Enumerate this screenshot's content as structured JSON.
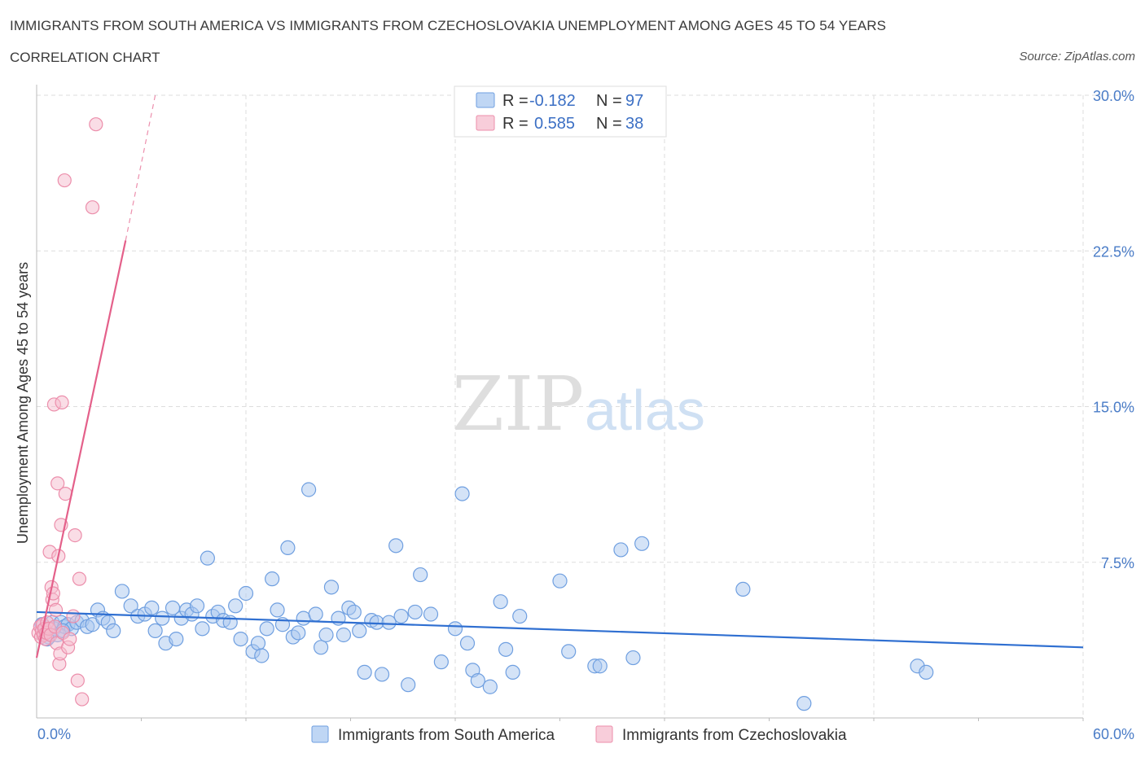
{
  "header": {
    "title": "IMMIGRANTS FROM SOUTH AMERICA VS IMMIGRANTS FROM CZECHOSLOVAKIA UNEMPLOYMENT AMONG AGES 45 TO 54 YEARS",
    "subtitle": "CORRELATION CHART",
    "source": "Source: ZipAtlas.com"
  },
  "watermark": {
    "zip": "ZIP",
    "atlas": "atlas"
  },
  "legend": {
    "r_label": "R =",
    "n_label": "N =",
    "rows": [
      {
        "r": "-0.182",
        "n": "97"
      },
      {
        "r": "0.585",
        "n": "38"
      }
    ]
  },
  "colors": {
    "blue_fill": "#a9c8f0",
    "blue_stroke": "#6f9fe0",
    "blue_line": "#2f6fd1",
    "pink_fill": "#f6bccd",
    "pink_stroke": "#ec8eab",
    "pink_line": "#e4608a",
    "grid": "#dddddd",
    "axis_text": "#4a7cc7"
  },
  "chart_data": {
    "type": "scatter",
    "title": "IMMIGRANTS FROM SOUTH AMERICA VS IMMIGRANTS FROM CZECHOSLOVAKIA UNEMPLOYMENT AMONG AGES 45 TO 54 YEARS",
    "xlabel": "",
    "ylabel": "Unemployment Among Ages 45 to 54 years",
    "xlim": [
      0,
      60
    ],
    "ylim": [
      0,
      30
    ],
    "x_tick_labels": [
      "0.0%",
      "60.0%"
    ],
    "y_ticks": [
      7.5,
      15.0,
      22.5,
      30.0
    ],
    "y_tick_labels": [
      "7.5%",
      "15.0%",
      "22.5%",
      "30.0%"
    ],
    "grid": true,
    "legend_position": "top-center",
    "series": [
      {
        "name": "Immigrants from South America",
        "r": -0.182,
        "n": 97,
        "trend": {
          "x0": 0,
          "y0": 5.1,
          "x1": 60,
          "y1": 3.4
        },
        "points": [
          [
            0.3,
            4.5
          ],
          [
            0.5,
            4.2
          ],
          [
            0.7,
            3.9
          ],
          [
            0.9,
            4.6
          ],
          [
            1.0,
            4.3
          ],
          [
            1.2,
            4.0
          ],
          [
            1.4,
            4.6
          ],
          [
            1.6,
            4.4
          ],
          [
            1.8,
            4.5
          ],
          [
            2.0,
            4.3
          ],
          [
            2.3,
            4.6
          ],
          [
            2.6,
            4.7
          ],
          [
            2.9,
            4.4
          ],
          [
            3.2,
            4.5
          ],
          [
            3.5,
            5.2
          ],
          [
            3.8,
            4.8
          ],
          [
            4.1,
            4.6
          ],
          [
            4.4,
            4.2
          ],
          [
            4.9,
            6.1
          ],
          [
            5.4,
            5.4
          ],
          [
            5.8,
            4.9
          ],
          [
            6.2,
            5.0
          ],
          [
            6.6,
            5.3
          ],
          [
            6.8,
            4.2
          ],
          [
            7.2,
            4.8
          ],
          [
            7.4,
            3.6
          ],
          [
            7.8,
            5.3
          ],
          [
            8.0,
            3.8
          ],
          [
            8.3,
            4.8
          ],
          [
            8.6,
            5.2
          ],
          [
            8.9,
            5.0
          ],
          [
            9.2,
            5.4
          ],
          [
            9.5,
            4.3
          ],
          [
            9.8,
            7.7
          ],
          [
            10.1,
            4.9
          ],
          [
            10.4,
            5.1
          ],
          [
            10.7,
            4.7
          ],
          [
            11.1,
            4.6
          ],
          [
            11.4,
            5.4
          ],
          [
            11.7,
            3.8
          ],
          [
            12.0,
            6.0
          ],
          [
            12.4,
            3.2
          ],
          [
            12.7,
            3.6
          ],
          [
            12.9,
            3.0
          ],
          [
            13.2,
            4.3
          ],
          [
            13.5,
            6.7
          ],
          [
            13.8,
            5.2
          ],
          [
            14.1,
            4.5
          ],
          [
            14.4,
            8.2
          ],
          [
            14.7,
            3.9
          ],
          [
            15.0,
            4.1
          ],
          [
            15.3,
            4.8
          ],
          [
            15.6,
            11.0
          ],
          [
            16.0,
            5.0
          ],
          [
            16.3,
            3.4
          ],
          [
            16.6,
            4.0
          ],
          [
            16.9,
            6.3
          ],
          [
            17.3,
            4.8
          ],
          [
            17.6,
            4.0
          ],
          [
            17.9,
            5.3
          ],
          [
            18.2,
            5.1
          ],
          [
            18.5,
            4.2
          ],
          [
            18.8,
            2.2
          ],
          [
            19.2,
            4.7
          ],
          [
            19.5,
            4.6
          ],
          [
            19.8,
            2.1
          ],
          [
            20.2,
            4.6
          ],
          [
            20.6,
            8.3
          ],
          [
            20.9,
            4.9
          ],
          [
            21.3,
            1.6
          ],
          [
            21.7,
            5.1
          ],
          [
            22.0,
            6.9
          ],
          [
            22.6,
            5.0
          ],
          [
            23.2,
            2.7
          ],
          [
            24.0,
            4.3
          ],
          [
            24.4,
            10.8
          ],
          [
            24.7,
            3.6
          ],
          [
            25.0,
            2.3
          ],
          [
            25.3,
            1.8
          ],
          [
            26.0,
            1.5
          ],
          [
            26.6,
            5.6
          ],
          [
            26.9,
            3.3
          ],
          [
            27.3,
            2.2
          ],
          [
            27.7,
            4.9
          ],
          [
            30.0,
            6.6
          ],
          [
            30.5,
            3.2
          ],
          [
            32.0,
            2.5
          ],
          [
            32.3,
            2.5
          ],
          [
            33.5,
            8.1
          ],
          [
            34.2,
            2.9
          ],
          [
            34.7,
            8.4
          ],
          [
            40.5,
            6.2
          ],
          [
            44.0,
            0.7
          ],
          [
            50.5,
            2.5
          ],
          [
            51.0,
            2.2
          ],
          [
            0.6,
            3.8
          ],
          [
            1.5,
            4.2
          ]
        ]
      },
      {
        "name": "Immigrants from Czechoslovakia",
        "r": 0.585,
        "n": 38,
        "trend": {
          "x0": 0,
          "y0": 2.9,
          "x1": 5.1,
          "y1": 23.0
        },
        "trend_dashed": {
          "x0": 5.1,
          "y0": 23.0,
          "x1": 6.8,
          "y1": 30.0
        },
        "points": [
          [
            0.1,
            4.1
          ],
          [
            0.2,
            4.4
          ],
          [
            0.25,
            3.9
          ],
          [
            0.3,
            4.2
          ],
          [
            0.35,
            4.5
          ],
          [
            0.4,
            4.0
          ],
          [
            0.45,
            4.3
          ],
          [
            0.5,
            3.8
          ],
          [
            0.55,
            4.1
          ],
          [
            0.6,
            4.6
          ],
          [
            0.7,
            4.3
          ],
          [
            0.75,
            8.0
          ],
          [
            0.8,
            4.0
          ],
          [
            0.85,
            6.3
          ],
          [
            0.9,
            5.7
          ],
          [
            0.95,
            6.0
          ],
          [
            1.0,
            15.1
          ],
          [
            1.05,
            4.4
          ],
          [
            1.1,
            5.2
          ],
          [
            1.15,
            3.6
          ],
          [
            1.2,
            11.3
          ],
          [
            1.25,
            7.8
          ],
          [
            1.3,
            2.6
          ],
          [
            1.35,
            3.1
          ],
          [
            1.4,
            9.3
          ],
          [
            1.45,
            15.2
          ],
          [
            1.5,
            4.1
          ],
          [
            1.6,
            25.9
          ],
          [
            1.65,
            10.8
          ],
          [
            1.8,
            3.4
          ],
          [
            1.9,
            3.8
          ],
          [
            2.1,
            4.9
          ],
          [
            2.2,
            8.8
          ],
          [
            2.35,
            1.8
          ],
          [
            2.45,
            6.7
          ],
          [
            2.6,
            0.9
          ],
          [
            3.2,
            24.6
          ],
          [
            3.4,
            28.6
          ]
        ]
      }
    ]
  },
  "bottom_legend": [
    {
      "label": "Immigrants from South America"
    },
    {
      "label": "Immigrants from Czechoslovakia"
    }
  ]
}
